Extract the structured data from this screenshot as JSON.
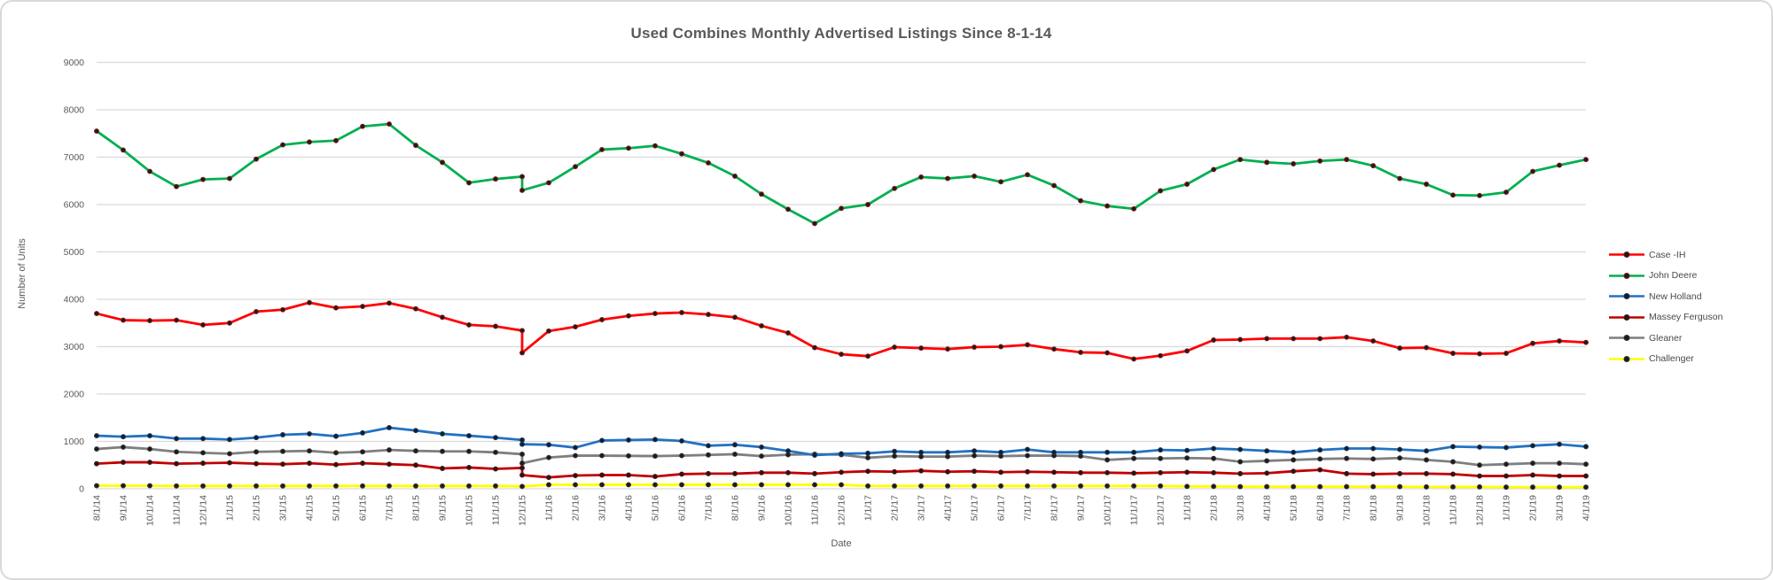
{
  "chart_data": {
    "type": "line",
    "title": "Used Combines Monthly Advertised Listings Since 8-1-14",
    "xlabel": "Date",
    "ylabel": "Number of Units",
    "ylim": [
      0,
      9000
    ],
    "y_ticks": [
      0,
      1000,
      2000,
      3000,
      4000,
      5000,
      6000,
      7000,
      8000,
      9000
    ],
    "grid": true,
    "legend_position": "right",
    "dec15_index": 16,
    "colors": {
      "grid": "#d9d9d9",
      "axis_text": "#595959",
      "marker": "#1b1b1b",
      "frame_border": "#d9d9d9"
    },
    "x": [
      "8/1/14",
      "9/1/14",
      "10/1/14",
      "11/1/14",
      "12/1/14",
      "1/1/15",
      "2/1/15",
      "3/1/15",
      "4/1/15",
      "5/1/15",
      "6/1/15",
      "7/1/15",
      "8/1/15",
      "9/1/15",
      "10/1/15",
      "11/1/15",
      "12/1/15",
      "1/1/16",
      "2/1/16",
      "3/1/16",
      "4/1/16",
      "5/1/16",
      "6/1/16",
      "7/1/16",
      "8/1/16",
      "9/1/16",
      "10/1/16",
      "11/1/16",
      "12/1/16",
      "1/1/17",
      "2/1/17",
      "3/1/17",
      "4/1/17",
      "5/1/17",
      "6/1/17",
      "7/1/17",
      "8/1/17",
      "9/1/17",
      "10/1/17",
      "11/1/17",
      "12/1/17",
      "1/1/18",
      "2/1/18",
      "3/1/18",
      "4/1/18",
      "5/1/18",
      "6/1/18",
      "7/1/18",
      "8/1/18",
      "9/1/18",
      "10/1/18",
      "11/1/18",
      "12/1/18",
      "1/1/19",
      "2/1/19",
      "3/1/19",
      "4/1/19"
    ],
    "series": [
      {
        "name": "Case -IH",
        "slug": "case-ih",
        "color": "#ff0000",
        "marker_ring": "#7c1a1a",
        "dec15_pre": 3340,
        "values": [
          3700,
          3560,
          3550,
          3560,
          3460,
          3500,
          3740,
          3780,
          3930,
          3820,
          3850,
          3920,
          3800,
          3620,
          3460,
          3430,
          2870,
          3330,
          3420,
          3570,
          3650,
          3700,
          3720,
          3680,
          3620,
          3440,
          3290,
          2980,
          2840,
          2800,
          2990,
          2970,
          2950,
          2990,
          3000,
          3040,
          2950,
          2880,
          2870,
          2740,
          2810,
          2910,
          3140,
          3150,
          3170,
          3170,
          3170,
          3200,
          3120,
          2970,
          2980,
          2860,
          2850,
          2860,
          3070,
          3120,
          3090
        ]
      },
      {
        "name": "John Deere",
        "slug": "john-deere",
        "color": "#00b050",
        "marker_ring": "#7c1a1a",
        "dec15_pre": 6590,
        "values": [
          7550,
          7150,
          6700,
          6380,
          6530,
          6550,
          6960,
          7260,
          7320,
          7350,
          7650,
          7700,
          7250,
          6890,
          6460,
          6540,
          6300,
          6460,
          6800,
          7160,
          7190,
          7240,
          7070,
          6880,
          6600,
          6220,
          5900,
          5600,
          5920,
          6000,
          6340,
          6580,
          6550,
          6600,
          6480,
          6630,
          6400,
          6080,
          5970,
          5910,
          6290,
          6430,
          6740,
          6950,
          6890,
          6860,
          6920,
          6950,
          6820,
          6550,
          6430,
          6200,
          6190,
          6260,
          6700,
          6830,
          6950
        ]
      },
      {
        "name": "New Holland",
        "slug": "new-holland",
        "color": "#2272c3",
        "marker_ring": "#143a63",
        "dec15_pre": 1030,
        "values": [
          1120,
          1100,
          1120,
          1060,
          1060,
          1040,
          1080,
          1140,
          1160,
          1110,
          1180,
          1290,
          1230,
          1160,
          1120,
          1080,
          940,
          930,
          870,
          1020,
          1030,
          1040,
          1010,
          910,
          930,
          880,
          800,
          710,
          740,
          750,
          790,
          770,
          770,
          800,
          770,
          830,
          770,
          770,
          770,
          770,
          820,
          810,
          850,
          830,
          800,
          770,
          820,
          850,
          850,
          830,
          800,
          890,
          880,
          870,
          910,
          940,
          890
        ]
      },
      {
        "name": "Massey Ferguson",
        "slug": "massey-ferguson",
        "color": "#c00000",
        "marker_ring": "#5e1010",
        "dec15_pre": 440,
        "values": [
          530,
          560,
          560,
          530,
          540,
          550,
          530,
          520,
          540,
          510,
          540,
          520,
          500,
          430,
          450,
          420,
          290,
          240,
          280,
          290,
          290,
          260,
          310,
          320,
          320,
          340,
          340,
          320,
          350,
          370,
          360,
          380,
          360,
          370,
          350,
          360,
          350,
          340,
          340,
          330,
          340,
          350,
          340,
          320,
          330,
          370,
          400,
          320,
          310,
          320,
          320,
          310,
          270,
          270,
          290,
          270,
          270
        ]
      },
      {
        "name": "Gleaner",
        "slug": "gleaner",
        "color": "#7f7f7f",
        "marker_ring": "#333333",
        "dec15_pre": 730,
        "values": [
          840,
          880,
          840,
          780,
          760,
          740,
          780,
          790,
          800,
          760,
          780,
          820,
          800,
          790,
          790,
          770,
          540,
          660,
          700,
          700,
          695,
          690,
          700,
          715,
          730,
          690,
          720,
          730,
          720,
          655,
          690,
          680,
          680,
          700,
          690,
          700,
          700,
          690,
          610,
          640,
          640,
          650,
          640,
          570,
          590,
          610,
          630,
          640,
          630,
          650,
          610,
          570,
          500,
          520,
          540,
          540,
          520
        ]
      },
      {
        "name": "Challenger",
        "slug": "challenger",
        "color": "#ffff00",
        "marker_ring": "#333333",
        "dec15_pre": null,
        "values": [
          65,
          65,
          65,
          60,
          60,
          60,
          60,
          60,
          60,
          60,
          60,
          60,
          60,
          60,
          60,
          60,
          50,
          85,
          85,
          85,
          85,
          85,
          85,
          85,
          85,
          85,
          85,
          85,
          85,
          60,
          60,
          60,
          60,
          60,
          60,
          60,
          60,
          60,
          60,
          60,
          60,
          50,
          50,
          45,
          45,
          45,
          45,
          45,
          45,
          45,
          40,
          40,
          40,
          35,
          35,
          35,
          35
        ]
      }
    ]
  }
}
